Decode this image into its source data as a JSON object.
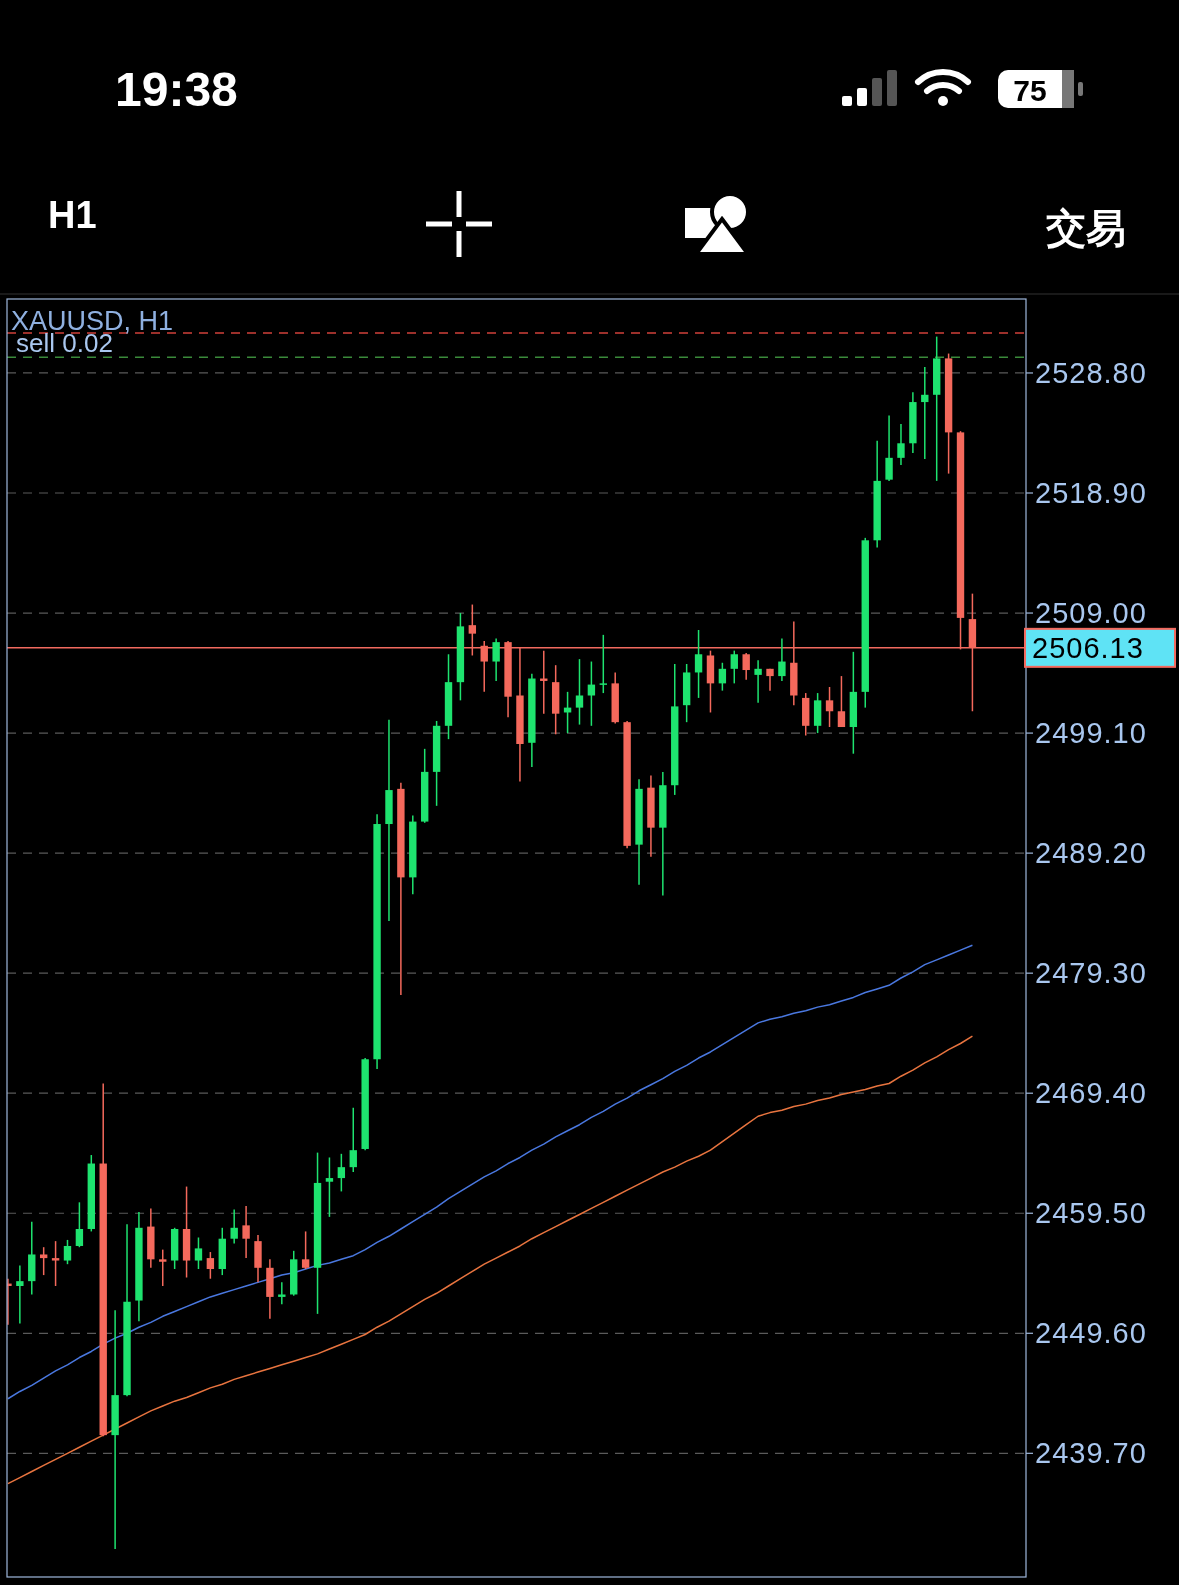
{
  "chart_data": {
    "type": "candlestick",
    "title": "XAUUSD, H1",
    "annotations": [
      "19:38",
      "75",
      "H1",
      "交易"
    ],
    "categories": [
      null,
      null,
      null,
      null,
      null,
      null,
      null,
      null,
      null,
      null,
      null,
      null,
      null,
      null,
      null,
      null,
      null,
      null,
      null,
      null,
      null,
      null,
      null,
      null,
      null,
      null,
      null,
      null,
      null,
      null,
      null,
      null,
      null,
      null,
      null,
      null,
      null,
      null,
      null,
      null,
      null,
      null,
      null,
      null,
      null,
      null,
      null,
      null,
      null,
      null,
      null,
      null,
      null,
      null,
      null,
      null,
      null,
      null,
      null,
      null,
      null,
      null,
      null,
      null,
      null,
      null,
      null,
      null,
      null,
      null,
      null,
      null,
      null,
      null,
      null,
      null,
      null,
      null,
      null,
      null,
      null,
      null
    ],
    "ohlc": [
      [
        2453.7,
        2454.1,
        2450.3,
        2453.5
      ],
      [
        2453.5,
        2455.2,
        2450.4,
        2453.9
      ],
      [
        2453.9,
        2458.8,
        2452.8,
        2456.1
      ],
      [
        2456.1,
        2456.7,
        2454.4,
        2455.8
      ],
      [
        2455.8,
        2457.2,
        2453.5,
        2455.6
      ],
      [
        2455.6,
        2457.3,
        2455.3,
        2456.8
      ],
      [
        2456.8,
        2460.4,
        2456.7,
        2458.2
      ],
      [
        2458.2,
        2464.3,
        2458.0,
        2463.6
      ],
      [
        2463.6,
        2470.2,
        2441.1,
        2441.2
      ],
      [
        2441.2,
        2451.5,
        2431.8,
        2444.5
      ],
      [
        2444.5,
        2458.6,
        2444.4,
        2452.2
      ],
      [
        2452.3,
        2459.6,
        2450.6,
        2458.3
      ],
      [
        2458.4,
        2459.9,
        2455.0,
        2455.7
      ],
      [
        2455.7,
        2456.5,
        2453.5,
        2455.5
      ],
      [
        2455.6,
        2458.3,
        2454.9,
        2458.2
      ],
      [
        2458.2,
        2461.7,
        2454.2,
        2455.6
      ],
      [
        2455.6,
        2457.5,
        2454.9,
        2456.6
      ],
      [
        2455.8,
        2456.3,
        2454.1,
        2454.9
      ],
      [
        2454.9,
        2458.3,
        2454.4,
        2457.4
      ],
      [
        2457.4,
        2459.8,
        2457.0,
        2458.3
      ],
      [
        2458.5,
        2460.1,
        2455.8,
        2457.4
      ],
      [
        2457.2,
        2457.7,
        2453.8,
        2455.0
      ],
      [
        2455.0,
        2455.7,
        2450.8,
        2452.6
      ],
      [
        2452.6,
        2453.8,
        2452.0,
        2452.8
      ],
      [
        2452.8,
        2456.4,
        2452.7,
        2455.7
      ],
      [
        2455.7,
        2458.0,
        2454.9,
        2455.0
      ],
      [
        2455.0,
        2464.5,
        2451.2,
        2462.0
      ],
      [
        2462.1,
        2464.1,
        2459.2,
        2462.4
      ],
      [
        2462.4,
        2464.4,
        2461.3,
        2463.3
      ],
      [
        2463.3,
        2468.2,
        2462.9,
        2464.7
      ],
      [
        2464.8,
        2472.3,
        2464.7,
        2472.2
      ],
      [
        2472.2,
        2492.4,
        2471.4,
        2491.6
      ],
      [
        2491.6,
        2500.2,
        2483.6,
        2494.4
      ],
      [
        2494.5,
        2495.0,
        2477.5,
        2487.2
      ],
      [
        2487.2,
        2492.3,
        2485.8,
        2491.8
      ],
      [
        2491.8,
        2497.8,
        2491.7,
        2495.9
      ],
      [
        2495.9,
        2500.1,
        2493.1,
        2499.7
      ],
      [
        2499.7,
        2505.6,
        2498.6,
        2503.3
      ],
      [
        2503.3,
        2509.0,
        2501.8,
        2507.9
      ],
      [
        2508.0,
        2509.7,
        2505.5,
        2507.3
      ],
      [
        2506.3,
        2506.7,
        2502.5,
        2505.0
      ],
      [
        2505.0,
        2506.9,
        2503.4,
        2506.6
      ],
      [
        2506.6,
        2506.7,
        2500.4,
        2502.1
      ],
      [
        2502.2,
        2506.2,
        2495.1,
        2498.2
      ],
      [
        2498.3,
        2504.0,
        2496.3,
        2503.6
      ],
      [
        2503.6,
        2505.9,
        2500.7,
        2503.4
      ],
      [
        2503.3,
        2504.7,
        2499.0,
        2500.7
      ],
      [
        2500.8,
        2502.5,
        2499.1,
        2501.2
      ],
      [
        2501.2,
        2505.2,
        2499.8,
        2502.2
      ],
      [
        2502.2,
        2505.0,
        2499.7,
        2503.1
      ],
      [
        2503.1,
        2507.2,
        2502.4,
        2503.2
      ],
      [
        2503.2,
        2504.1,
        2499.9,
        2500.0
      ],
      [
        2500.0,
        2500.1,
        2489.6,
        2489.8
      ],
      [
        2489.9,
        2495.3,
        2486.6,
        2494.5
      ],
      [
        2494.6,
        2495.6,
        2488.9,
        2491.3
      ],
      [
        2491.3,
        2495.9,
        2485.7,
        2494.8
      ],
      [
        2494.8,
        2504.8,
        2494.0,
        2501.3
      ],
      [
        2501.4,
        2504.8,
        2500.0,
        2504.1
      ],
      [
        2504.1,
        2507.6,
        2502.0,
        2505.6
      ],
      [
        2505.5,
        2505.9,
        2500.8,
        2503.2
      ],
      [
        2503.2,
        2504.9,
        2502.6,
        2504.4
      ],
      [
        2504.4,
        2505.9,
        2503.2,
        2505.6
      ],
      [
        2505.6,
        2505.7,
        2503.5,
        2504.3
      ],
      [
        2503.9,
        2505.1,
        2501.6,
        2504.4
      ],
      [
        2504.4,
        2504.4,
        2502.6,
        2503.8
      ],
      [
        2503.8,
        2506.9,
        2503.4,
        2505.0
      ],
      [
        2504.9,
        2508.3,
        2501.4,
        2502.2
      ],
      [
        2502.0,
        2502.4,
        2498.9,
        2499.7
      ],
      [
        2499.7,
        2502.4,
        2499.1,
        2501.8
      ],
      [
        2501.8,
        2502.9,
        2499.6,
        2500.9
      ],
      [
        2500.9,
        2503.8,
        2499.6,
        2499.6
      ],
      [
        2499.6,
        2505.8,
        2497.4,
        2502.5
      ],
      [
        2502.5,
        2515.2,
        2501.2,
        2515.0
      ],
      [
        2515.0,
        2523.2,
        2514.4,
        2519.9
      ],
      [
        2520.0,
        2525.3,
        2519.9,
        2521.8
      ],
      [
        2521.8,
        2524.6,
        2521.2,
        2523.0
      ],
      [
        2523.0,
        2527.2,
        2522.2,
        2526.4
      ],
      [
        2526.4,
        2529.3,
        2521.7,
        2527.0
      ],
      [
        2527.0,
        2531.8,
        2519.9,
        2530.0
      ],
      [
        2530.0,
        2530.4,
        2520.5,
        2523.9
      ],
      [
        2523.9,
        2524.0,
        2506.0,
        2508.6
      ],
      [
        2508.5,
        2510.6,
        2500.9,
        2506.13
      ]
    ],
    "colors": [
      "#f4695c",
      "#1ee36f",
      "#1ee36f",
      "#f4695c",
      "#f4695c",
      "#1ee36f",
      "#1ee36f",
      "#1ee36f",
      "#f4695c",
      "#1ee36f",
      "#1ee36f",
      "#1ee36f",
      "#f4695c",
      "#f4695c",
      "#1ee36f",
      "#f4695c",
      "#1ee36f",
      "#f4695c",
      "#1ee36f",
      "#1ee36f",
      "#f4695c",
      "#f4695c",
      "#f4695c",
      "#1ee36f",
      "#1ee36f",
      "#f4695c",
      "#1ee36f",
      "#1ee36f",
      "#1ee36f",
      "#1ee36f",
      "#1ee36f",
      "#1ee36f",
      "#1ee36f",
      "#f4695c",
      "#1ee36f",
      "#1ee36f",
      "#1ee36f",
      "#1ee36f",
      "#1ee36f",
      "#f4695c",
      "#f4695c",
      "#1ee36f",
      "#f4695c",
      "#f4695c",
      "#1ee36f",
      "#f4695c",
      "#f4695c",
      "#1ee36f",
      "#1ee36f",
      "#1ee36f",
      "#1ee36f",
      "#f4695c",
      "#f4695c",
      "#1ee36f",
      "#f4695c",
      "#1ee36f",
      "#1ee36f",
      "#1ee36f",
      "#1ee36f",
      "#f4695c",
      "#1ee36f",
      "#1ee36f",
      "#f4695c",
      "#1ee36f",
      "#f4695c",
      "#1ee36f",
      "#f4695c",
      "#f4695c",
      "#1ee36f",
      "#f4695c",
      "#f4695c",
      "#1ee36f",
      "#1ee36f",
      "#1ee36f",
      "#1ee36f",
      "#1ee36f",
      "#1ee36f",
      "#1ee36f",
      "#1ee36f",
      "#f4695c",
      "#f4695c",
      "#f4695c"
    ],
    "series": [
      {
        "type": "line",
        "color": "#4a78e0",
        "values": [
          2444.2,
          2444.8,
          2445.3,
          2445.9,
          2446.5,
          2447.0,
          2447.6,
          2448.1,
          2448.7,
          2449.2,
          2449.6,
          2450.1,
          2450.5,
          2451.0,
          2451.4,
          2451.8,
          2452.2,
          2452.6,
          2452.9,
          2453.2,
          2453.5,
          2453.8,
          2454.1,
          2454.4,
          2454.6,
          2454.9,
          2455.2,
          2455.4,
          2455.7,
          2456.0,
          2456.5,
          2457.1,
          2457.6,
          2458.2,
          2458.8,
          2459.4,
          2460.0,
          2460.7,
          2461.3,
          2461.9,
          2462.5,
          2463.0,
          2463.6,
          2464.1,
          2464.7,
          2465.2,
          2465.8,
          2466.3,
          2466.8,
          2467.4,
          2467.9,
          2468.5,
          2469.0,
          2469.6,
          2470.1,
          2470.6,
          2471.2,
          2471.7,
          2472.3,
          2472.8,
          2473.4,
          2474.0,
          2474.6,
          2475.2,
          2475.5,
          2475.7,
          2476.0,
          2476.2,
          2476.5,
          2476.7,
          2477.0,
          2477.3,
          2477.7,
          2478.0,
          2478.3,
          2478.9,
          2479.4,
          2480.0,
          2480.4,
          2480.8,
          2481.2,
          2481.6
        ]
      },
      {
        "type": "line",
        "color": "#e8743f",
        "values": [
          2437.2,
          2437.7,
          2438.2,
          2438.7,
          2439.2,
          2439.7,
          2440.2,
          2440.7,
          2441.2,
          null,
          2442.2,
          2442.7,
          2443.2,
          2443.6,
          2444.0,
          2444.3,
          2444.7,
          2445.1,
          2445.4,
          2445.8,
          2446.1,
          2446.4,
          2446.7,
          2447.0,
          2447.3,
          2447.6,
          2447.9,
          2448.3,
          2448.7,
          2449.1,
          2449.5,
          2450.1,
          2450.6,
          2451.2,
          2451.8,
          2452.4,
          2452.9,
          2453.5,
          2454.1,
          2454.7,
          2455.3,
          2455.8,
          2456.3,
          2456.8,
          2457.4,
          2457.9,
          2458.4,
          2458.9,
          2459.4,
          2459.9,
          2460.4,
          2460.9,
          2461.4,
          2461.9,
          2462.4,
          2462.9,
          2463.3,
          2463.8,
          2464.2,
          2464.7,
          2465.4,
          2466.1,
          2466.8,
          2467.5,
          2467.8,
          2468.0,
          2468.3,
          2468.5,
          2468.8,
          2469.0,
          2469.3,
          2469.5,
          2469.7,
          2470.0,
          2470.2,
          2470.8,
          2471.3,
          2471.9,
          2472.4,
          2473.0,
          2473.5,
          2474.1
        ]
      }
    ],
    "ylim": [
      2429.5,
      2534.9
    ],
    "yticks": [
      {
        "value": 2528.8,
        "label": "2528.80"
      },
      {
        "value": 2518.9,
        "label": "2518.90"
      },
      {
        "value": 2509.0,
        "label": "2509.00"
      },
      {
        "value": 2499.1,
        "label": "2499.10"
      },
      {
        "value": 2489.2,
        "label": "2489.20"
      },
      {
        "value": 2479.3,
        "label": "2479.30"
      },
      {
        "value": 2469.4,
        "label": "2469.40"
      },
      {
        "value": 2459.5,
        "label": "2459.50"
      },
      {
        "value": 2449.6,
        "label": "2449.60"
      },
      {
        "value": 2439.7,
        "label": "2439.70"
      }
    ],
    "grid": "y",
    "ref_lines": [
      {
        "axis": "y",
        "value": 2532.1,
        "color": "#d0403a",
        "line_style": "dashed"
      },
      {
        "axis": "y",
        "value": 2530.1,
        "label": "sell 0.02",
        "color": "#3a8a3a",
        "line_style": "dashed"
      },
      {
        "axis": "y",
        "value": 2506.13,
        "label": "2506.13",
        "color": "#f26a5f",
        "line_style": "solid"
      }
    ]
  }
}
